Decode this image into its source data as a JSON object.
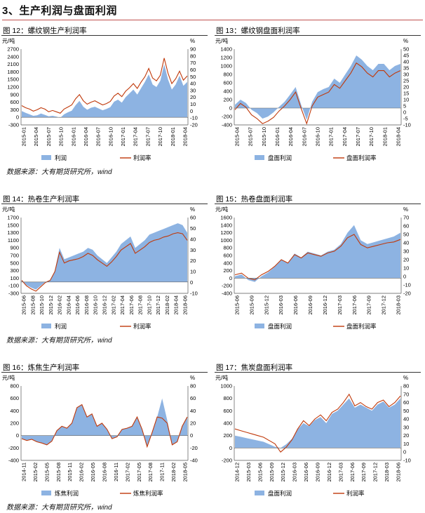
{
  "section_title": "3、生产利润与盘面利润",
  "sources": [
    "数据来源：大有期货研究所，wind",
    "数据来源：大有期货研究所，wind",
    "数据来源：大有期货研究所，wind"
  ],
  "colors": {
    "area": "#8db3e2",
    "line": "#c0390b",
    "rule": "#333333"
  },
  "chart_data": [
    {
      "id": "fig12",
      "type": "area+line",
      "title": "图 12：螺纹钢生产利润率",
      "left_unit": "元/吨",
      "right_unit": "%",
      "left_ticks": [
        "2700",
        "2400",
        "2100",
        "1800",
        "1500",
        "1200",
        "900",
        "600",
        "300",
        "0",
        "-300"
      ],
      "right_ticks": [
        "90",
        "80",
        "70",
        "60",
        "50",
        "40",
        "30",
        "20",
        "10",
        "0",
        "-10",
        "-20"
      ],
      "ylim_left": [
        -300,
        2700
      ],
      "ylim_right": [
        -20,
        90
      ],
      "x_labels": [
        "2015-01",
        "2015-04",
        "2015-07",
        "2015-10",
        "2016-01",
        "2016-04",
        "2016-07",
        "2016-10",
        "2017-01",
        "2017-04",
        "2017-07",
        "2017-10",
        "2018-01",
        "2018-04"
      ],
      "series": [
        {
          "name": "利润",
          "axis": "left",
          "style": "area",
          "values": [
            250,
            180,
            120,
            60,
            80,
            150,
            100,
            40,
            60,
            30,
            -20,
            120,
            200,
            260,
            480,
            650,
            420,
            300,
            380,
            420,
            350,
            280,
            330,
            400,
            620,
            700,
            580,
            800,
            950,
            1100,
            900,
            1150,
            1400,
            1700,
            1300,
            1200,
            1450,
            2100,
            1500,
            1100,
            1300,
            1650,
            1250,
            1400
          ]
        },
        {
          "name": "利润率",
          "axis": "right",
          "style": "line",
          "values": [
            8,
            5,
            3,
            0,
            2,
            5,
            3,
            -1,
            1,
            -1,
            -3,
            3,
            6,
            9,
            18,
            24,
            15,
            10,
            13,
            15,
            12,
            9,
            11,
            14,
            22,
            26,
            21,
            29,
            34,
            40,
            33,
            42,
            50,
            62,
            48,
            44,
            52,
            77,
            55,
            40,
            47,
            58,
            45,
            51
          ]
        }
      ]
    },
    {
      "id": "fig13",
      "type": "area+line",
      "title": "图 13：螺纹钢盘面利润率",
      "left_unit": "元/吨",
      "right_unit": "%",
      "left_ticks": [
        "1400",
        "1200",
        "1000",
        "800",
        "600",
        "400",
        "200",
        "0",
        "-200",
        "-400"
      ],
      "right_ticks": [
        "50",
        "45",
        "40",
        "35",
        "30",
        "25",
        "20",
        "15",
        "10",
        "5",
        "0",
        "-5",
        "-10"
      ],
      "ylim_left": [
        -400,
        1400
      ],
      "ylim_right": [
        -10,
        50
      ],
      "x_labels": [
        "2015-04",
        "2015-07",
        "2015-10",
        "2016-01",
        "2016-04",
        "2016-07",
        "2016-10",
        "2017-01",
        "2017-04",
        "2017-07",
        "2017-10",
        "2018-01",
        "2018-04"
      ],
      "series": [
        {
          "name": "盘面利润",
          "axis": "left",
          "style": "area",
          "values": [
            80,
            200,
            120,
            -40,
            -120,
            -250,
            -200,
            -100,
            30,
            150,
            320,
            500,
            80,
            -280,
            150,
            380,
            450,
            500,
            700,
            600,
            800,
            1000,
            1250,
            1150,
            1000,
            900,
            1050,
            1050,
            900,
            1000,
            1050
          ]
        },
        {
          "name": "盘面利润率",
          "axis": "right",
          "style": "line",
          "values": [
            2,
            7,
            4,
            -2,
            -5,
            -9,
            -7,
            -4,
            1,
            5,
            10,
            16,
            3,
            -9,
            5,
            12,
            14,
            16,
            22,
            19,
            25,
            31,
            39,
            36,
            31,
            28,
            33,
            33,
            28,
            31,
            33
          ]
        }
      ]
    },
    {
      "id": "fig14",
      "type": "area+line",
      "title": "图 14：热卷生产利润率",
      "left_unit": "元/吨",
      "right_unit": "%",
      "left_ticks": [
        "1700",
        "1500",
        "1300",
        "1100",
        "900",
        "700",
        "500",
        "300",
        "100",
        "-100",
        "-300"
      ],
      "right_ticks": [
        "60",
        "50",
        "40",
        "30",
        "20",
        "10",
        "0",
        "-10"
      ],
      "ylim_left": [
        -300,
        1700
      ],
      "ylim_right": [
        -10,
        60
      ],
      "x_labels": [
        "2015-06",
        "2015-08",
        "2015-10",
        "2015-12",
        "2016-02",
        "2016-04",
        "2016-06",
        "2016-08",
        "2016-10",
        "2016-12",
        "2017-02",
        "2017-04",
        "2017-06",
        "2017-08",
        "2017-10",
        "2017-12",
        "2018-02",
        "2018-04",
        "2018-06"
      ],
      "series": [
        {
          "name": "利润",
          "axis": "left",
          "style": "area",
          "values": [
            50,
            -80,
            -150,
            -200,
            -100,
            0,
            50,
            300,
            900,
            600,
            650,
            700,
            750,
            800,
            900,
            850,
            700,
            600,
            500,
            650,
            800,
            1000,
            1100,
            1200,
            900,
            1000,
            1100,
            1250,
            1300,
            1350,
            1400,
            1450,
            1500,
            1550,
            1500,
            1300
          ]
        },
        {
          "name": "利润率",
          "axis": "right",
          "style": "line",
          "values": [
            2,
            -3,
            -6,
            -8,
            -4,
            0,
            2,
            10,
            28,
            18,
            20,
            21,
            22,
            24,
            27,
            25,
            21,
            18,
            15,
            19,
            24,
            30,
            33,
            36,
            27,
            30,
            33,
            37,
            39,
            40,
            42,
            43,
            45,
            46,
            45,
            39
          ]
        }
      ]
    },
    {
      "id": "fig15",
      "type": "area+line",
      "title": "图 15：热卷盘面利润率",
      "left_unit": "元/吨",
      "right_unit": "%",
      "left_ticks": [
        "1600",
        "1400",
        "1200",
        "1000",
        "800",
        "600",
        "400",
        "200",
        "0",
        "-200",
        "-400"
      ],
      "right_ticks": [
        "70",
        "60",
        "50",
        "40",
        "30",
        "20",
        "10",
        "0",
        "-10",
        "-20"
      ],
      "ylim_left": [
        -400,
        1600
      ],
      "ylim_right": [
        -20,
        70
      ],
      "x_labels": [
        "2015-06",
        "2015-09",
        "2015-12",
        "2016-03",
        "2016-06",
        "2016-09",
        "2016-12",
        "2017-03",
        "2017-06",
        "2017-09",
        "2017-12",
        "2018-03"
      ],
      "series": [
        {
          "name": "盘面利润",
          "axis": "left",
          "style": "area",
          "values": [
            50,
            100,
            -50,
            -100,
            50,
            150,
            300,
            500,
            400,
            650,
            550,
            700,
            650,
            600,
            700,
            750,
            900,
            1200,
            1400,
            1000,
            900,
            950,
            1000,
            1050,
            1100,
            1200
          ]
        },
        {
          "name": "盘面利润率",
          "axis": "right",
          "style": "line",
          "values": [
            2,
            4,
            -2,
            -4,
            2,
            6,
            12,
            20,
            16,
            26,
            22,
            28,
            26,
            24,
            28,
            30,
            36,
            46,
            50,
            38,
            34,
            36,
            38,
            40,
            41,
            44
          ]
        }
      ]
    },
    {
      "id": "fig16",
      "type": "area+line",
      "title": "图 16：炼焦生产利润率",
      "left_unit": "元/吨",
      "right_unit": "%",
      "left_ticks": [
        "800",
        "600",
        "400",
        "200",
        "0",
        "-200",
        "-400"
      ],
      "right_ticks": [
        "80",
        "60",
        "40",
        "20",
        "0",
        "-20",
        "-40"
      ],
      "ylim_left": [
        -400,
        800
      ],
      "ylim_right": [
        -40,
        80
      ],
      "x_labels": [
        "2014-11",
        "2015-02",
        "2015-05",
        "2015-08",
        "2015-11",
        "2016-02",
        "2016-05",
        "2016-08",
        "2016-11",
        "2017-02",
        "2017-05",
        "2017-08",
        "2017-11",
        "2018-02",
        "2018-05"
      ],
      "series": [
        {
          "name": "炼焦利润",
          "axis": "left",
          "style": "area",
          "values": [
            -50,
            -80,
            -60,
            -100,
            -120,
            -150,
            -90,
            80,
            150,
            120,
            200,
            450,
            500,
            300,
            350,
            150,
            200,
            100,
            -50,
            -20,
            100,
            120,
            150,
            300,
            100,
            -180,
            50,
            300,
            600,
            250,
            -150,
            -100,
            150,
            300
          ]
        },
        {
          "name": "炼焦利润率",
          "axis": "right",
          "style": "line",
          "values": [
            -5,
            -8,
            -6,
            -10,
            -12,
            -15,
            -9,
            8,
            15,
            12,
            20,
            45,
            50,
            30,
            35,
            15,
            20,
            10,
            -5,
            -2,
            10,
            12,
            15,
            30,
            10,
            -18,
            5,
            30,
            28,
            20,
            -15,
            -10,
            15,
            30
          ]
        }
      ]
    },
    {
      "id": "fig17",
      "type": "area+line",
      "title": "图 17：焦炭盘面利润率",
      "left_unit": "元/吨",
      "right_unit": "%",
      "left_ticks": [
        "1000",
        "800",
        "600",
        "400",
        "200",
        "0",
        "-200"
      ],
      "right_ticks": [
        "80",
        "70",
        "60",
        "50",
        "40",
        "30",
        "20",
        "10",
        "0",
        "-10"
      ],
      "ylim_left": [
        -200,
        1000
      ],
      "ylim_right": [
        -10,
        80
      ],
      "x_labels": [
        "2014-12",
        "2015-03",
        "2015-06",
        "2015-09",
        "2015-12",
        "2016-03",
        "2016-06",
        "2016-09",
        "2016-12",
        "2017-03",
        "2017-06",
        "2017-09",
        "2017-12",
        "2018-03",
        "2018-06"
      ],
      "series": [
        {
          "name": "盘面利润",
          "axis": "left",
          "style": "area",
          "values": [
            200,
            180,
            160,
            140,
            120,
            100,
            60,
            20,
            0,
            60,
            150,
            300,
            400,
            350,
            450,
            500,
            400,
            550,
            600,
            700,
            800,
            650,
            700,
            650,
            600,
            700,
            750,
            650,
            700,
            800
          ]
        },
        {
          "name": "利润率",
          "axis": "right",
          "style": "line",
          "values": [
            28,
            26,
            24,
            22,
            20,
            18,
            14,
            10,
            0,
            6,
            15,
            28,
            38,
            32,
            40,
            45,
            38,
            48,
            52,
            60,
            70,
            56,
            60,
            55,
            52,
            60,
            63,
            55,
            60,
            68
          ]
        }
      ]
    }
  ]
}
